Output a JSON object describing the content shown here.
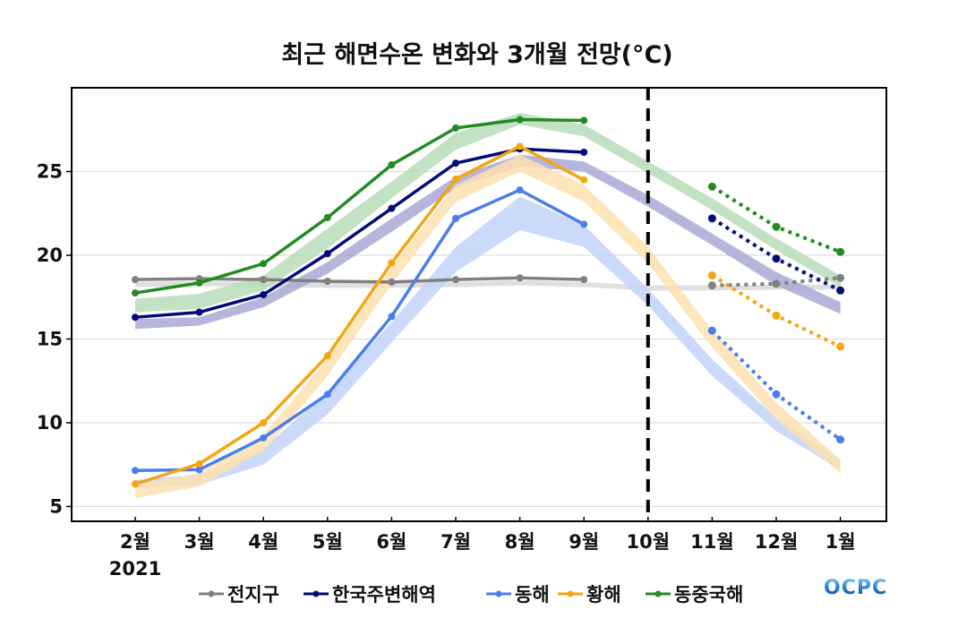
{
  "chart_data": {
    "type": "line",
    "title": "최근 해면수온 변화와 3개월 전망(°C)",
    "xlabel": "",
    "ylabel": "",
    "year_label": "2021",
    "categories": [
      "2월",
      "3월",
      "4월",
      "5월",
      "6월",
      "7월",
      "8월",
      "9월",
      "10월",
      "11월",
      "12월",
      "1월"
    ],
    "ylim": [
      4.2,
      29.5
    ],
    "yticks": [
      5,
      10,
      15,
      20,
      25
    ],
    "grid": true,
    "divider_after_category": "10월",
    "legend_position": "bottom",
    "logo_text": "OCPC",
    "series": [
      {
        "name": "전지구",
        "color": "#808080",
        "band_color": "#d9d9d9",
        "observed": [
          18.55,
          18.6,
          18.55,
          18.45,
          18.4,
          18.55,
          18.65,
          18.55,
          null,
          null,
          null,
          null
        ],
        "forecast": [
          null,
          null,
          null,
          null,
          null,
          null,
          null,
          null,
          null,
          18.2,
          18.3,
          18.65
        ],
        "band_low": [
          18.1,
          18.15,
          18.1,
          18.05,
          18.05,
          18.1,
          18.2,
          18.1,
          17.9,
          17.9,
          17.95,
          17.95
        ],
        "band_high": [
          18.4,
          18.45,
          18.4,
          18.35,
          18.35,
          18.4,
          18.5,
          18.4,
          18.2,
          18.2,
          18.25,
          18.25
        ]
      },
      {
        "name": "한국주변해역",
        "color": "#000a78",
        "band_color": "#a9a9d6",
        "observed": [
          16.3,
          16.6,
          17.65,
          20.1,
          22.8,
          25.5,
          26.35,
          26.15,
          null,
          null,
          null,
          null
        ],
        "forecast": [
          null,
          null,
          null,
          null,
          null,
          null,
          null,
          null,
          null,
          22.2,
          19.8,
          17.9
        ],
        "band_low": [
          15.6,
          15.8,
          16.9,
          18.9,
          21.4,
          24.0,
          25.3,
          25.0,
          22.9,
          20.6,
          18.2,
          16.5
        ],
        "band_high": [
          16.2,
          16.3,
          17.5,
          19.6,
          22.2,
          24.7,
          26.0,
          25.6,
          23.6,
          21.3,
          19.0,
          17.2
        ]
      },
      {
        "name": "동해",
        "color": "#4a7eeb",
        "band_color": "#c2d3fa",
        "observed": [
          7.15,
          7.2,
          9.1,
          11.7,
          16.35,
          22.2,
          23.9,
          21.85,
          null,
          null,
          null,
          null
        ],
        "forecast": [
          null,
          null,
          null,
          null,
          null,
          null,
          null,
          null,
          null,
          15.5,
          11.7,
          9.0
        ],
        "band_low": [
          6.1,
          6.3,
          7.5,
          10.5,
          14.8,
          19.0,
          21.5,
          20.5,
          17.0,
          12.8,
          9.5,
          7.2
        ],
        "band_high": [
          6.6,
          6.9,
          8.5,
          11.8,
          16.0,
          20.5,
          23.5,
          21.8,
          18.0,
          13.8,
          10.3,
          7.8
        ]
      },
      {
        "name": "황해",
        "color": "#f5a511",
        "band_color": "#fde0b0",
        "observed": [
          6.35,
          7.55,
          10.0,
          14.0,
          19.55,
          24.55,
          26.5,
          24.5,
          null,
          null,
          null,
          null
        ],
        "forecast": [
          null,
          null,
          null,
          null,
          null,
          null,
          null,
          null,
          null,
          18.8,
          16.4,
          14.55
        ],
        "band_low": [
          5.5,
          6.2,
          8.3,
          12.8,
          18.3,
          23.2,
          25.0,
          23.2,
          19.5,
          14.5,
          10.2,
          7.0
        ],
        "band_high": [
          6.3,
          7.0,
          9.3,
          13.8,
          19.3,
          24.2,
          26.0,
          24.2,
          20.5,
          15.5,
          11.2,
          7.8
        ]
      },
      {
        "name": "동중국해",
        "color": "#228b22",
        "band_color": "#b9dcb9",
        "observed": [
          17.75,
          18.35,
          19.5,
          22.25,
          25.4,
          27.6,
          28.1,
          28.05,
          null,
          null,
          null,
          null
        ],
        "forecast": [
          null,
          null,
          null,
          null,
          null,
          null,
          null,
          null,
          null,
          24.1,
          21.7,
          20.2
        ],
        "band_low": [
          16.6,
          16.8,
          17.9,
          20.4,
          23.4,
          26.3,
          27.8,
          27.1,
          24.9,
          22.7,
          20.3,
          18.1
        ],
        "band_high": [
          17.4,
          17.7,
          18.8,
          21.6,
          24.4,
          27.3,
          28.5,
          27.8,
          25.6,
          23.4,
          21.0,
          18.8
        ]
      }
    ]
  }
}
